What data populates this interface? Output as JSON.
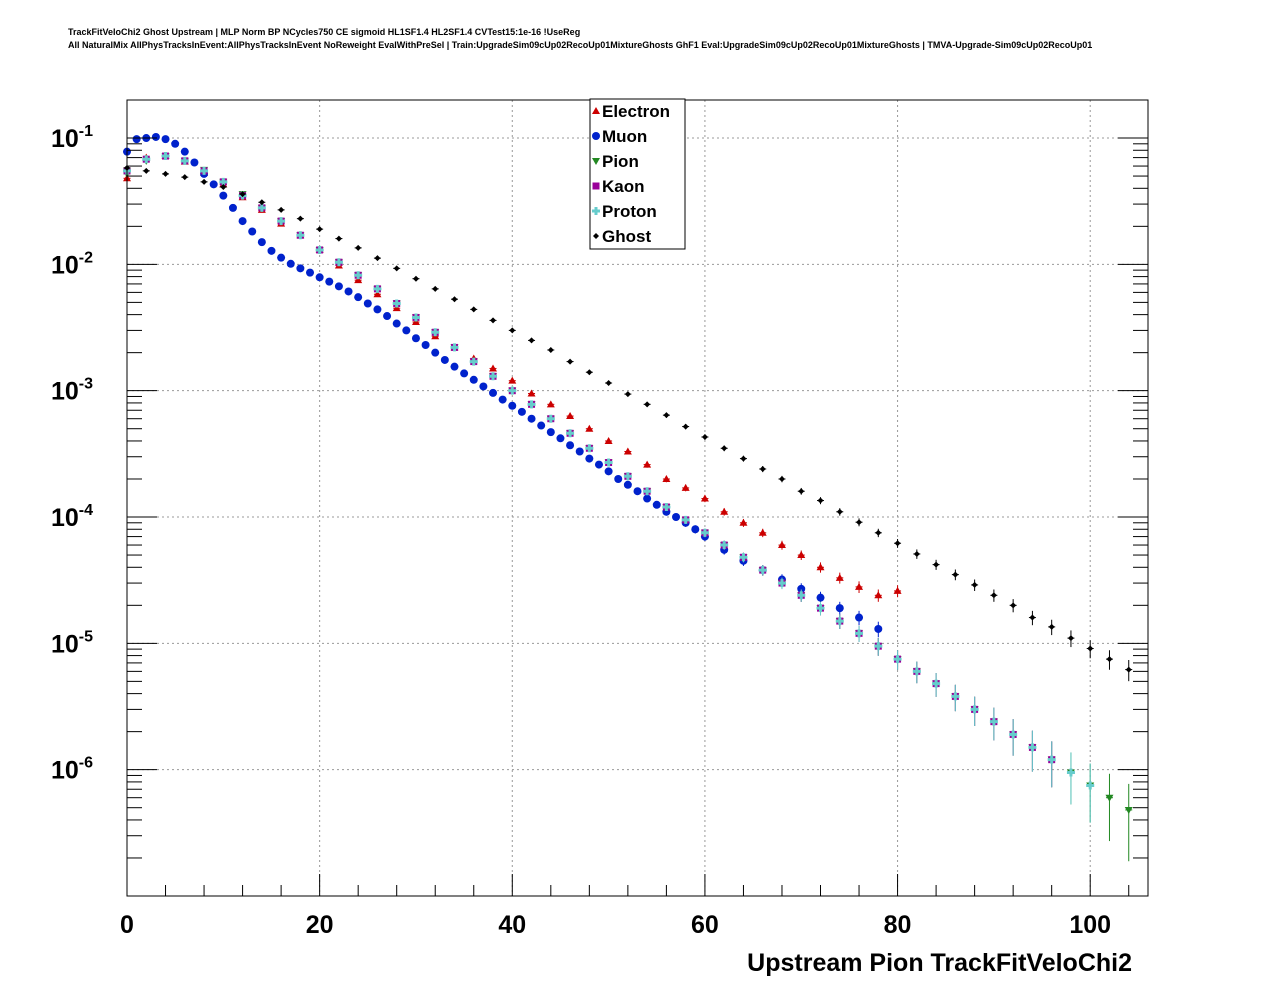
{
  "title": {
    "line1": "TrackFitVeloChi2 Ghost Upstream | MLP Norm BP NCycles750 CE sigmoid HL1SF1.4 HL2SF1.4 CVTest15:1e-16 !UseReg",
    "line2": "All NaturalMix AllPhysTracksInEvent:AllPhysTracksInEvent NoReweight EvalWithPreSel | Train:UpgradeSim09cUp02RecoUp01MixtureGhosts GhF1 Eval:UpgradeSim09cUp02RecoUp01MixtureGhosts | TMVA-Upgrade-Sim09cUp02RecoUp01"
  },
  "chart_data": {
    "type": "scatter",
    "xlabel": "Upstream Pion TrackFitVeloChi2",
    "ylabel": "",
    "xlim": [
      0,
      106
    ],
    "ylim": [
      1e-07,
      0.2
    ],
    "yscale": "log",
    "grid": true,
    "legend_position": "top-center",
    "x_ticks": [
      0,
      20,
      40,
      60,
      80,
      100
    ],
    "y_ticks": [
      {
        "value": 0.1,
        "base": "10",
        "exp": "-1"
      },
      {
        "value": 0.01,
        "base": "10",
        "exp": "-2"
      },
      {
        "value": 0.001,
        "base": "10",
        "exp": "-3"
      },
      {
        "value": 0.0001,
        "base": "10",
        "exp": "-4"
      },
      {
        "value": 1e-05,
        "base": "10",
        "exp": "-5"
      },
      {
        "value": 1e-06,
        "base": "10",
        "exp": "-6"
      }
    ],
    "series": [
      {
        "name": "Electron",
        "color": "#cc0000",
        "marker": "triangle-up",
        "x": [
          0,
          2,
          4,
          6,
          8,
          10,
          12,
          14,
          16,
          18,
          20,
          22,
          24,
          26,
          28,
          30,
          32,
          34,
          36,
          38,
          40,
          42,
          44,
          46,
          48,
          50,
          52,
          54,
          56,
          58,
          60,
          62,
          64,
          66,
          68,
          70,
          72,
          74,
          76,
          78,
          80
        ],
        "y": [
          0.048,
          0.07,
          0.072,
          0.065,
          0.053,
          0.043,
          0.034,
          0.027,
          0.021,
          0.017,
          0.013,
          0.0098,
          0.0075,
          0.0058,
          0.0045,
          0.0035,
          0.0027,
          0.0022,
          0.0018,
          0.0015,
          0.0012,
          0.00095,
          0.00078,
          0.00063,
          0.0005,
          0.0004,
          0.00033,
          0.00026,
          0.0002,
          0.00017,
          0.00014,
          0.00011,
          9e-05,
          7.5e-05,
          6e-05,
          5e-05,
          4e-05,
          3.3e-05,
          2.8e-05,
          2.4e-05,
          2.6e-05
        ]
      },
      {
        "name": "Muon",
        "color": "#0022cc",
        "marker": "circle",
        "x": [
          0,
          1,
          2,
          3,
          4,
          5,
          6,
          7,
          8,
          9,
          10,
          11,
          12,
          13,
          14,
          15,
          16,
          17,
          18,
          19,
          20,
          21,
          22,
          23,
          24,
          25,
          26,
          27,
          28,
          29,
          30,
          31,
          32,
          33,
          34,
          35,
          36,
          37,
          38,
          39,
          40,
          41,
          42,
          43,
          44,
          45,
          46,
          47,
          48,
          49,
          50,
          51,
          52,
          53,
          54,
          55,
          56,
          57,
          58,
          59,
          60,
          62,
          64,
          66,
          68,
          70,
          72,
          74,
          76,
          78
        ],
        "y": [
          0.078,
          0.098,
          0.1,
          0.102,
          0.098,
          0.09,
          0.078,
          0.064,
          0.052,
          0.043,
          0.035,
          0.028,
          0.022,
          0.0182,
          0.015,
          0.0128,
          0.0113,
          0.0101,
          0.0093,
          0.0086,
          0.0079,
          0.0073,
          0.0067,
          0.0061,
          0.0055,
          0.0049,
          0.0044,
          0.0039,
          0.0034,
          0.003,
          0.0026,
          0.0023,
          0.002,
          0.00175,
          0.00155,
          0.00137,
          0.00122,
          0.00108,
          0.00096,
          0.00085,
          0.00076,
          0.00068,
          0.0006,
          0.00053,
          0.00047,
          0.00042,
          0.00037,
          0.00033,
          0.00029,
          0.00026,
          0.00023,
          0.0002,
          0.00018,
          0.00016,
          0.00014,
          0.000125,
          0.00011,
          0.0001,
          9e-05,
          8e-05,
          7e-05,
          5.5e-05,
          4.5e-05,
          3.8e-05,
          3.2e-05,
          2.7e-05,
          2.3e-05,
          1.9e-05,
          1.6e-05,
          1.3e-05
        ]
      },
      {
        "name": "Pion",
        "color": "#228822",
        "marker": "triangle-down",
        "x": [
          0,
          2,
          4,
          6,
          8,
          10,
          12,
          14,
          16,
          18,
          20,
          22,
          24,
          26,
          28,
          30,
          32,
          34,
          36,
          38,
          40,
          42,
          44,
          46,
          48,
          50,
          52,
          54,
          56,
          58,
          60,
          62,
          64,
          66,
          68,
          70,
          72,
          74,
          76,
          78,
          80,
          82,
          84,
          86,
          88,
          90,
          92,
          94,
          96,
          98,
          100,
          102,
          104
        ],
        "y": [
          0.052,
          0.066,
          0.072,
          0.066,
          0.056,
          0.045,
          0.036,
          0.028,
          0.022,
          0.017,
          0.013,
          0.0104,
          0.0082,
          0.0064,
          0.0049,
          0.0038,
          0.0029,
          0.0022,
          0.0017,
          0.0013,
          0.001,
          0.00078,
          0.0006,
          0.00046,
          0.00035,
          0.00027,
          0.00021,
          0.00016,
          0.00012,
          9.5e-05,
          7.5e-05,
          6e-05,
          4.8e-05,
          3.8e-05,
          3e-05,
          2.4e-05,
          1.9e-05,
          1.5e-05,
          1.2e-05,
          9.5e-06,
          7.5e-06,
          6e-06,
          4.8e-06,
          3.8e-06,
          3e-06,
          2.4e-06,
          1.9e-06,
          1.5e-06,
          1.2e-06,
          9.5e-07,
          7.5e-07,
          6e-07,
          4.8e-07
        ]
      },
      {
        "name": "Kaon",
        "color": "#990099",
        "marker": "square",
        "x": [
          0,
          2,
          4,
          6,
          8,
          10,
          12,
          14,
          16,
          18,
          20,
          22,
          24,
          26,
          28,
          30,
          32,
          34,
          36,
          38,
          40,
          42,
          44,
          46,
          48,
          50,
          52,
          54,
          56,
          58,
          60,
          62,
          64,
          66,
          68,
          70,
          72,
          74,
          76,
          78,
          80,
          82,
          84,
          86,
          88,
          90,
          92,
          94,
          96
        ],
        "y": [
          0.055,
          0.068,
          0.072,
          0.066,
          0.055,
          0.045,
          0.035,
          0.028,
          0.022,
          0.017,
          0.013,
          0.0104,
          0.0082,
          0.0064,
          0.0049,
          0.0038,
          0.0029,
          0.0022,
          0.0017,
          0.0013,
          0.001,
          0.00078,
          0.0006,
          0.00046,
          0.00035,
          0.00027,
          0.00021,
          0.00016,
          0.00012,
          9.5e-05,
          7.5e-05,
          6e-05,
          4.8e-05,
          3.8e-05,
          3e-05,
          2.4e-05,
          1.9e-05,
          1.5e-05,
          1.2e-05,
          9.5e-06,
          7.5e-06,
          6e-06,
          4.8e-06,
          3.8e-06,
          3e-06,
          2.4e-06,
          1.9e-06,
          1.5e-06,
          1.2e-06
        ]
      },
      {
        "name": "Proton",
        "color": "#66cccc",
        "marker": "plus",
        "x": [
          0,
          2,
          4,
          6,
          8,
          10,
          12,
          14,
          16,
          18,
          20,
          22,
          24,
          26,
          28,
          30,
          32,
          34,
          36,
          38,
          40,
          42,
          44,
          46,
          48,
          50,
          52,
          54,
          56,
          58,
          60,
          62,
          64,
          66,
          68,
          70,
          72,
          74,
          76,
          78,
          80,
          82,
          84,
          86,
          88,
          90,
          92,
          94,
          96,
          98,
          100
        ],
        "y": [
          0.055,
          0.068,
          0.072,
          0.066,
          0.055,
          0.045,
          0.035,
          0.028,
          0.022,
          0.017,
          0.013,
          0.0104,
          0.0082,
          0.0064,
          0.0049,
          0.0038,
          0.0029,
          0.0022,
          0.0017,
          0.0013,
          0.001,
          0.00078,
          0.0006,
          0.00046,
          0.00035,
          0.00027,
          0.00021,
          0.00016,
          0.00012,
          9.5e-05,
          7.5e-05,
          6e-05,
          4.8e-05,
          3.8e-05,
          3e-05,
          2.4e-05,
          1.9e-05,
          1.5e-05,
          1.2e-05,
          9.5e-06,
          7.5e-06,
          6e-06,
          4.8e-06,
          3.8e-06,
          3e-06,
          2.4e-06,
          1.9e-06,
          1.5e-06,
          1.2e-06,
          9.5e-07,
          7.5e-07
        ]
      },
      {
        "name": "Ghost",
        "color": "#000000",
        "marker": "diamond",
        "x": [
          0,
          2,
          4,
          6,
          8,
          10,
          12,
          14,
          16,
          18,
          20,
          22,
          24,
          26,
          28,
          30,
          32,
          34,
          36,
          38,
          40,
          42,
          44,
          46,
          48,
          50,
          52,
          54,
          56,
          58,
          60,
          62,
          64,
          66,
          68,
          70,
          72,
          74,
          76,
          78,
          80,
          82,
          84,
          86,
          88,
          90,
          92,
          94,
          96,
          98,
          100,
          102,
          104
        ],
        "y": [
          0.058,
          0.055,
          0.052,
          0.049,
          0.045,
          0.041,
          0.036,
          0.031,
          0.027,
          0.023,
          0.019,
          0.016,
          0.0135,
          0.0112,
          0.0093,
          0.0077,
          0.0064,
          0.0053,
          0.0044,
          0.0036,
          0.003,
          0.0025,
          0.0021,
          0.0017,
          0.0014,
          0.00115,
          0.00094,
          0.00078,
          0.00064,
          0.00052,
          0.00043,
          0.00035,
          0.00029,
          0.00024,
          0.0002,
          0.00016,
          0.000135,
          0.00011,
          9.1e-05,
          7.5e-05,
          6.2e-05,
          5.1e-05,
          4.2e-05,
          3.5e-05,
          2.9e-05,
          2.4e-05,
          2e-05,
          1.6e-05,
          1.35e-05,
          1.1e-05,
          9.1e-06,
          7.5e-06,
          6.2e-06
        ]
      }
    ]
  }
}
